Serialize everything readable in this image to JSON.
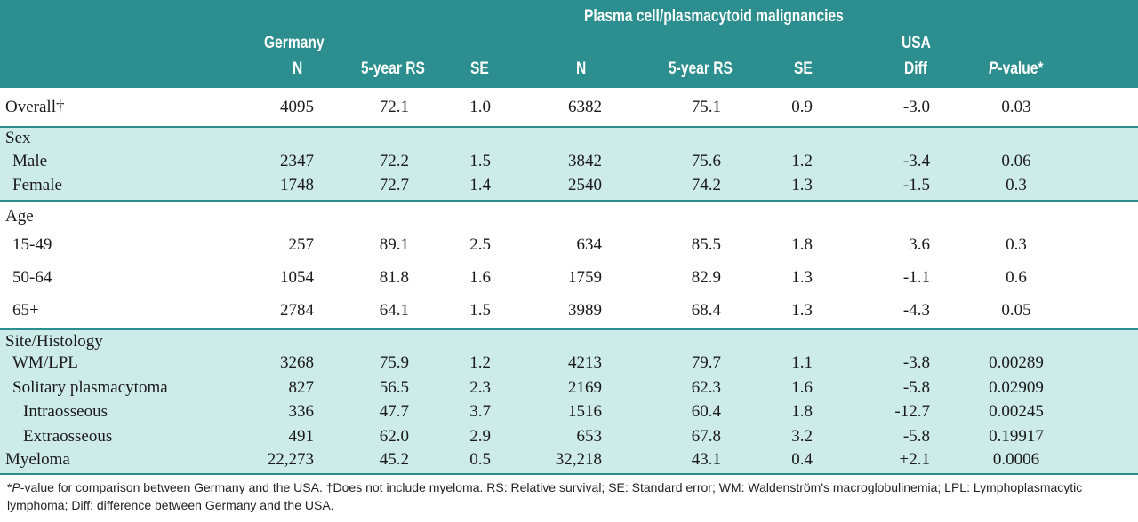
{
  "header": {
    "group_title": "Plasma cell/plasmacytoid malignancies",
    "germany": "Germany",
    "usa": "USA",
    "columns": [
      "N",
      "5-year RS",
      "SE",
      "N",
      "5-year RS",
      "SE",
      "Diff",
      "P-value*"
    ]
  },
  "rows": [
    {
      "label": "Overall†",
      "vals": [
        "4095",
        "72.1",
        "1.0",
        "6382",
        "75.1",
        "0.9",
        "-3.0",
        "0.03"
      ]
    },
    {
      "label": "Sex",
      "vals": []
    },
    {
      "label": "Male",
      "vals": [
        "2347",
        "72.2",
        "1.5",
        "3842",
        "75.6",
        "1.2",
        "-3.4",
        "0.06"
      ]
    },
    {
      "label": "Female",
      "vals": [
        "1748",
        "72.7",
        "1.4",
        "2540",
        "74.2",
        "1.3",
        "-1.5",
        "0.3"
      ]
    },
    {
      "label": "Age",
      "vals": []
    },
    {
      "label": "15-49",
      "vals": [
        "257",
        "89.1",
        "2.5",
        "634",
        "85.5",
        "1.8",
        "3.6",
        "0.3"
      ]
    },
    {
      "label": "50-64",
      "vals": [
        "1054",
        "81.8",
        "1.6",
        "1759",
        "82.9",
        "1.3",
        "-1.1",
        "0.6"
      ]
    },
    {
      "label": "65+",
      "vals": [
        "2784",
        "64.1",
        "1.5",
        "3989",
        "68.4",
        "1.3",
        "-4.3",
        "0.05"
      ]
    },
    {
      "label": "Site/Histology",
      "vals": []
    },
    {
      "label": "WM/LPL",
      "vals": [
        "3268",
        "75.9",
        "1.2",
        "4213",
        "79.7",
        "1.1",
        "-3.8",
        "0.00289"
      ]
    },
    {
      "label": "Solitary plasmacytoma",
      "vals": [
        "827",
        "56.5",
        "2.3",
        "2169",
        "62.3",
        "1.6",
        "-5.8",
        "0.02909"
      ]
    },
    {
      "label": "Intraosseous",
      "vals": [
        "336",
        "47.7",
        "3.7",
        "1516",
        "60.4",
        "1.8",
        "-12.7",
        "0.00245"
      ]
    },
    {
      "label": "Extraosseous",
      "vals": [
        "491",
        "62.0",
        "2.9",
        "653",
        "67.8",
        "3.2",
        "-5.8",
        "0.19917"
      ]
    },
    {
      "label": "Myeloma",
      "vals": [
        "22,273",
        "45.2",
        "0.5",
        "32,218",
        "43.1",
        "0.4",
        "+2.1",
        "0.0006"
      ]
    }
  ],
  "footnote": {
    "p_italic": "P",
    "text": "-value for comparison between Germany and the USA. †Does not include myeloma. RS: Relative survival; SE: Standard error; WM: Waldenström's macroglobulinemia; LPL: Lymphoplasmacytic lymphoma; Diff: difference between Germany and the USA.",
    "lead": "*"
  },
  "colors": {
    "header_bg": "#2c8e8e",
    "band_bg": "#cdebe9",
    "rule": "#2c8e8e"
  }
}
